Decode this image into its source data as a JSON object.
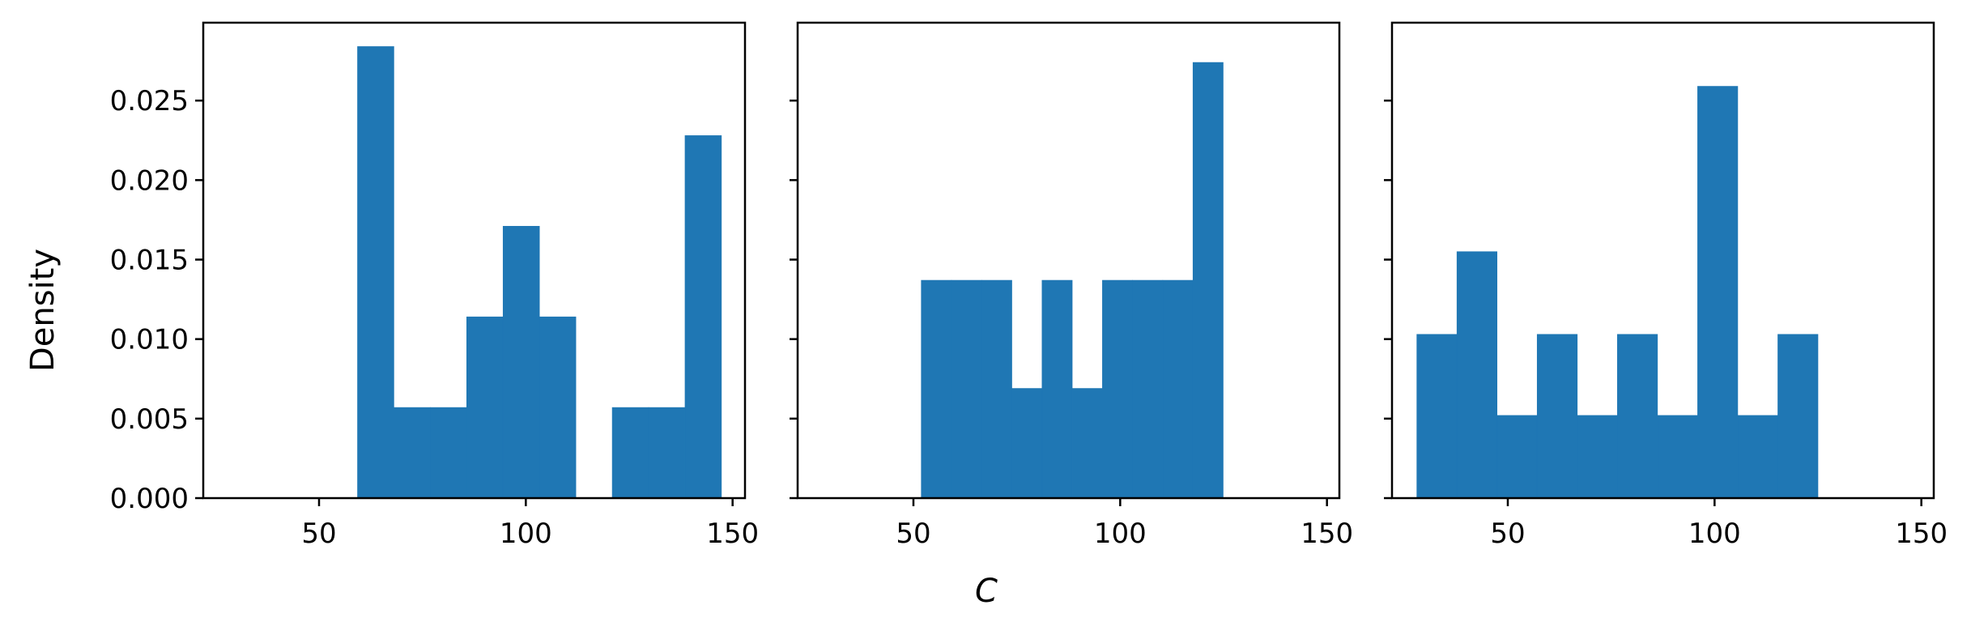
{
  "chart_data": {
    "type": "bar",
    "subtype": "histogram",
    "bar_color": "#1f77b4",
    "xlabel": "C",
    "ylabel": "Density",
    "xlim": [
      22,
      153
    ],
    "ylim": [
      0,
      0.0299
    ],
    "xticks": [
      50,
      100,
      150
    ],
    "xtick_labels": [
      "50",
      "100",
      "150"
    ],
    "yticks": [
      0,
      0.005,
      0.01,
      0.015,
      0.02,
      0.025
    ],
    "ytick_labels": [
      "0.000",
      "0.005",
      "0.010",
      "0.015",
      "0.020",
      "0.025"
    ],
    "sharey": true,
    "grid": false,
    "legend": "none",
    "panels": [
      {
        "bins": [
          {
            "x0": 59.3,
            "x1": 68.1,
            "density": 0.0284
          },
          {
            "x0": 68.1,
            "x1": 76.9,
            "density": 0.0057
          },
          {
            "x0": 76.9,
            "x1": 85.7,
            "density": 0.0057
          },
          {
            "x0": 85.7,
            "x1": 94.5,
            "density": 0.0114
          },
          {
            "x0": 94.5,
            "x1": 103.3,
            "density": 0.0171
          },
          {
            "x0": 103.3,
            "x1": 112.1,
            "density": 0.0114
          },
          {
            "x0": 112.1,
            "x1": 120.9,
            "density": 0.0
          },
          {
            "x0": 120.9,
            "x1": 129.7,
            "density": 0.0057
          },
          {
            "x0": 129.7,
            "x1": 138.5,
            "density": 0.0057
          },
          {
            "x0": 138.5,
            "x1": 147.3,
            "density": 0.0228
          }
        ]
      },
      {
        "bins": [
          {
            "x0": 51.9,
            "x1": 59.2,
            "density": 0.0137
          },
          {
            "x0": 59.2,
            "x1": 66.5,
            "density": 0.0137
          },
          {
            "x0": 66.5,
            "x1": 73.8,
            "density": 0.0137
          },
          {
            "x0": 73.8,
            "x1": 81.1,
            "density": 0.0069
          },
          {
            "x0": 81.1,
            "x1": 88.4,
            "density": 0.0137
          },
          {
            "x0": 88.4,
            "x1": 95.7,
            "density": 0.0069
          },
          {
            "x0": 95.7,
            "x1": 103.0,
            "density": 0.0137
          },
          {
            "x0": 103.0,
            "x1": 110.3,
            "density": 0.0137
          },
          {
            "x0": 110.3,
            "x1": 117.6,
            "density": 0.0137
          },
          {
            "x0": 117.6,
            "x1": 124.9,
            "density": 0.0274
          }
        ]
      },
      {
        "bins": [
          {
            "x0": 28.0,
            "x1": 37.7,
            "density": 0.0103
          },
          {
            "x0": 37.7,
            "x1": 47.4,
            "density": 0.0155
          },
          {
            "x0": 47.4,
            "x1": 57.1,
            "density": 0.0052
          },
          {
            "x0": 57.1,
            "x1": 66.8,
            "density": 0.0103
          },
          {
            "x0": 66.8,
            "x1": 76.5,
            "density": 0.0052
          },
          {
            "x0": 76.5,
            "x1": 86.2,
            "density": 0.0103
          },
          {
            "x0": 86.2,
            "x1": 95.9,
            "density": 0.0052
          },
          {
            "x0": 95.9,
            "x1": 105.6,
            "density": 0.0259
          },
          {
            "x0": 105.6,
            "x1": 115.3,
            "density": 0.0052
          },
          {
            "x0": 115.3,
            "x1": 125.0,
            "density": 0.0103
          }
        ]
      }
    ]
  }
}
